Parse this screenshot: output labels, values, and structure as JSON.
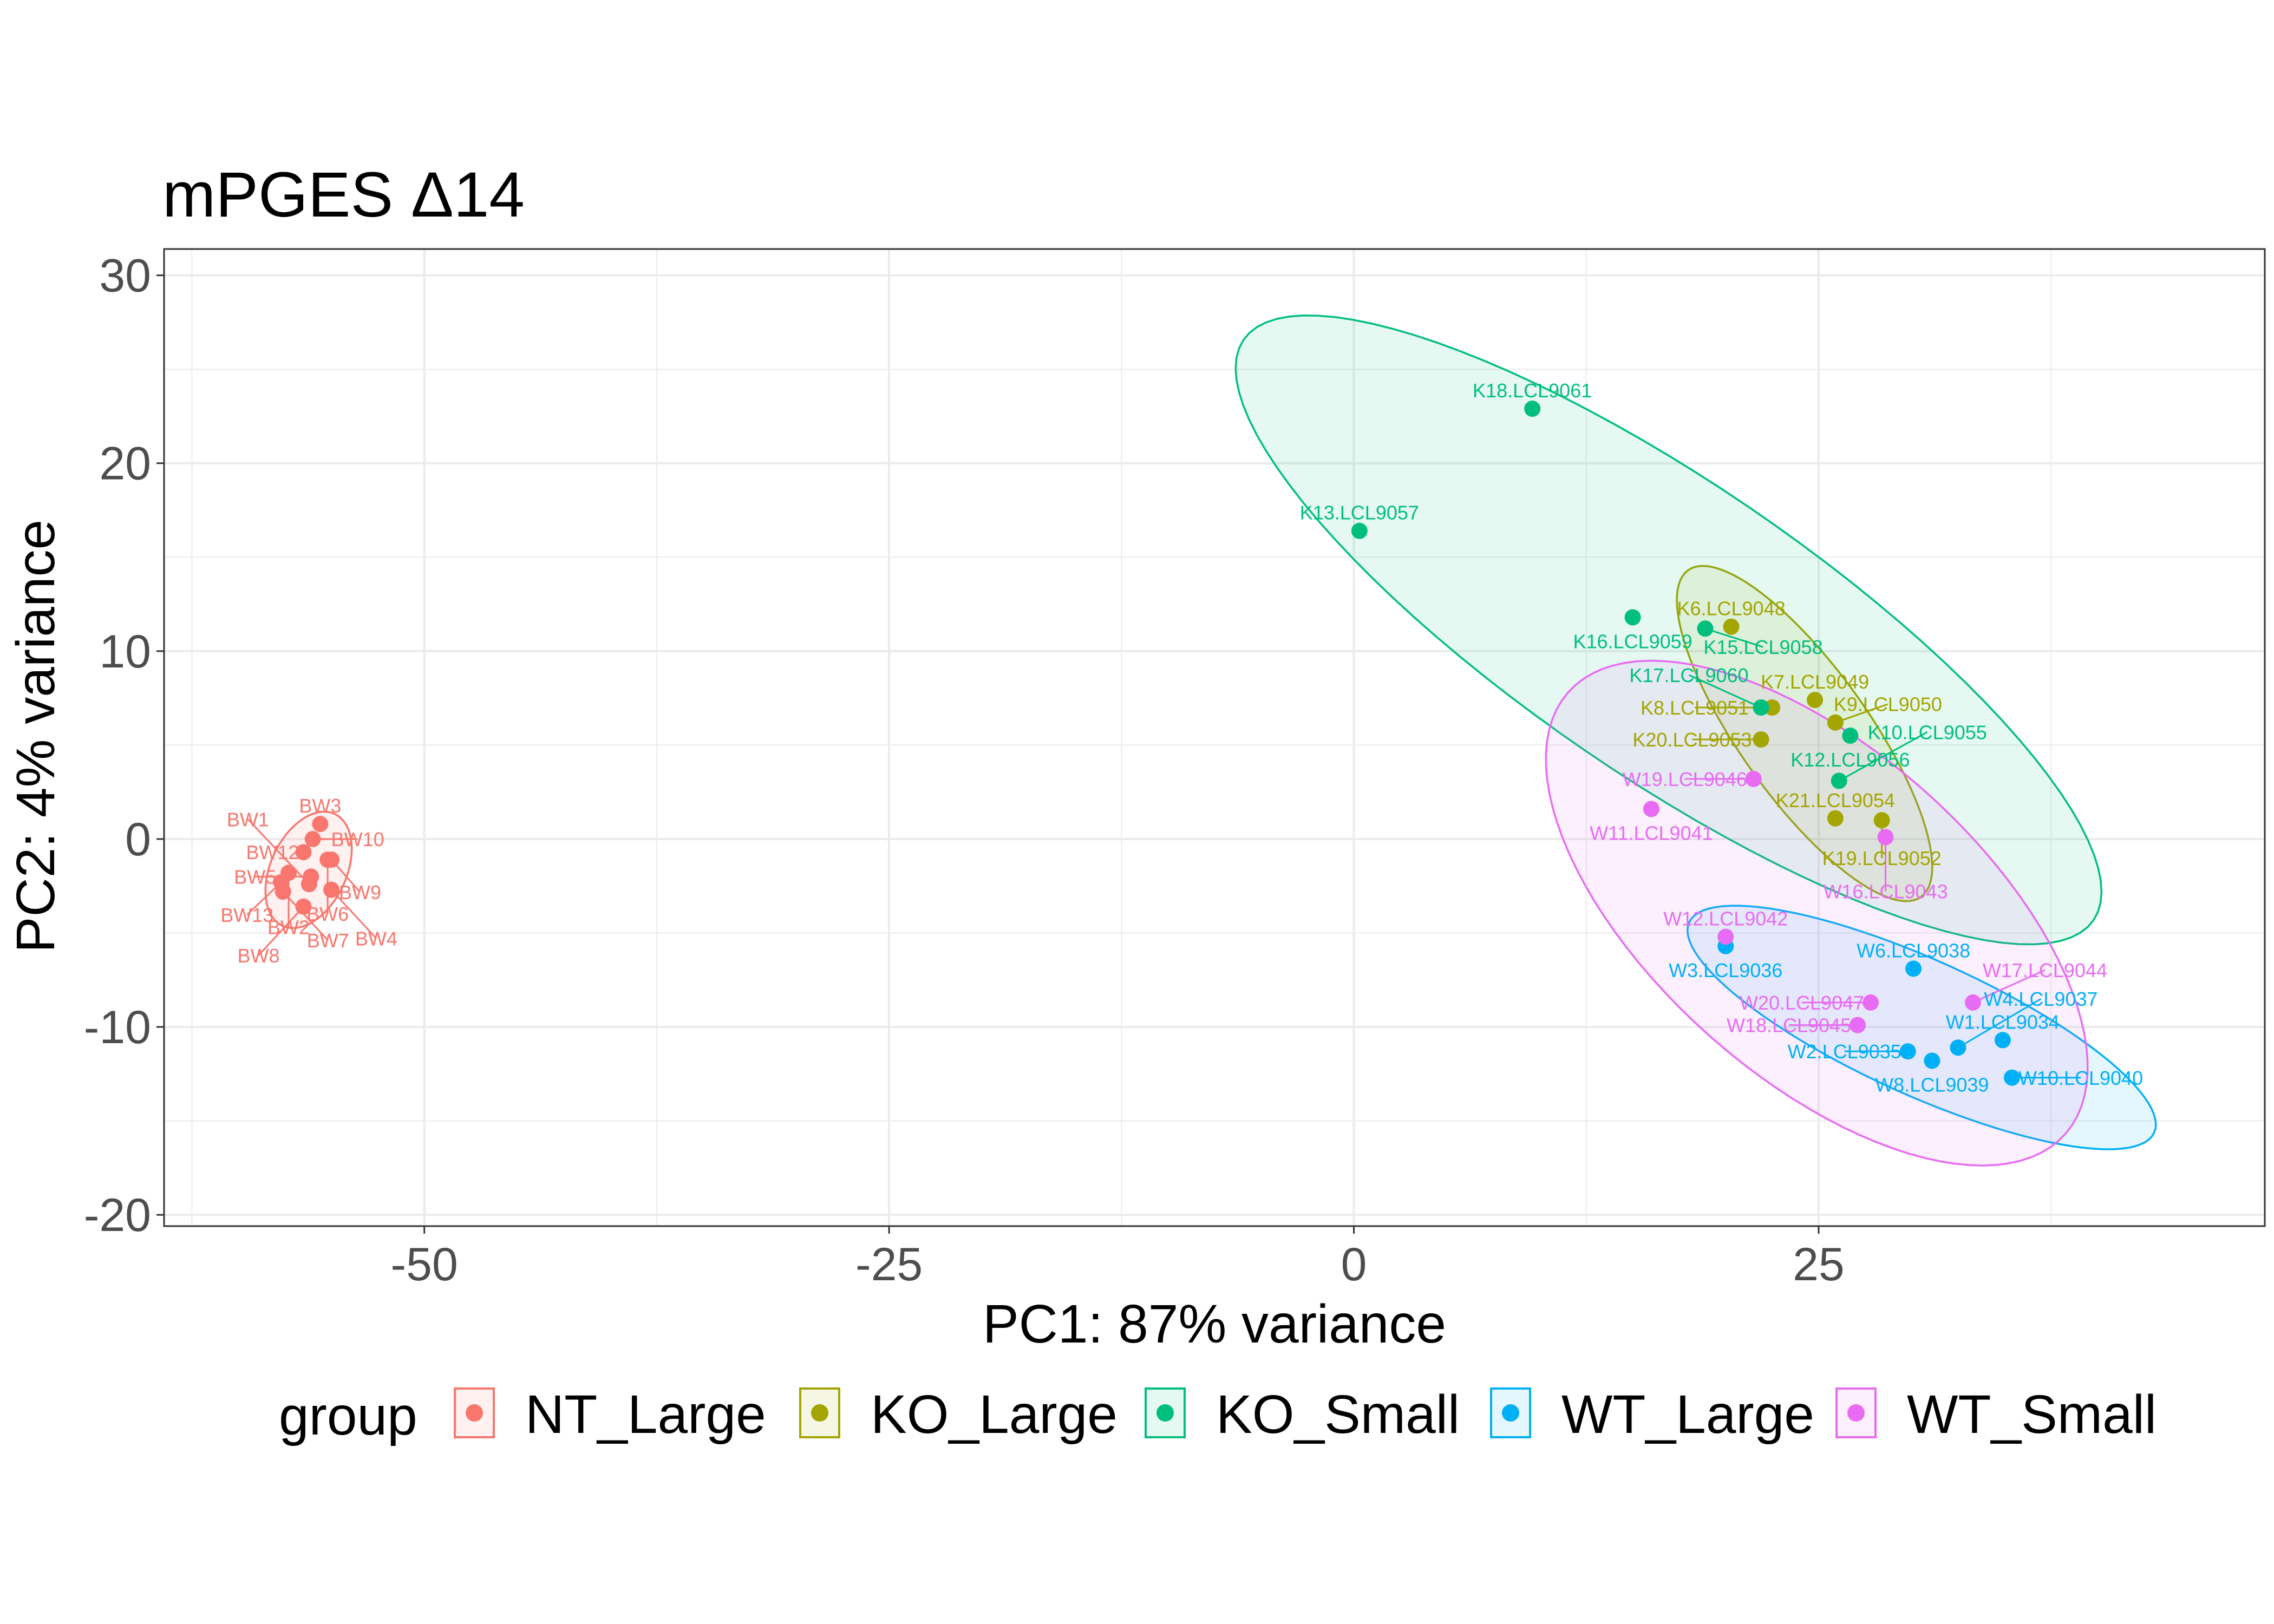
{
  "chart_data": {
    "type": "scatter",
    "title": "mPGES Δ14",
    "xlabel": "PC1: 87% variance",
    "ylabel": "PC2: 4% variance",
    "xlim": [
      -64,
      49
    ],
    "ylim": [
      -20.6,
      31.4
    ],
    "x_ticks": [
      -50,
      -25,
      0,
      25
    ],
    "x_tick_labels": [
      "-50",
      "-25",
      "0",
      "25"
    ],
    "y_ticks": [
      -20,
      -10,
      0,
      10,
      20,
      30
    ],
    "y_tick_labels": [
      "-20",
      "-10",
      "0",
      "10",
      "20",
      "30"
    ],
    "grid": true,
    "legend_title": "group",
    "legend_position": "bottom",
    "series": [
      {
        "name": "NT_Large",
        "color": "#F8766D",
        "points": [
          {
            "label": "BW3",
            "x": -55.6,
            "y": 0.8
          },
          {
            "label": "BW10",
            "x": -56.0,
            "y": 0.0
          },
          {
            "label": "BW12",
            "x": -56.5,
            "y": -0.7
          },
          {
            "label": "BW9",
            "x": -55.0,
            "y": -1.1
          },
          {
            "label": "BW6",
            "x": -55.2,
            "y": -1.1
          },
          {
            "label": "BW2",
            "x": -57.3,
            "y": -1.8
          },
          {
            "label": "BW5",
            "x": -56.1,
            "y": -2.0
          },
          {
            "label": "BW7",
            "x": -57.6,
            "y": -2.8
          },
          {
            "label": "BW1",
            "x": -56.2,
            "y": -2.4
          },
          {
            "label": "BW4",
            "x": -55.0,
            "y": -2.7
          },
          {
            "label": "BW13",
            "x": -57.7,
            "y": -2.3
          },
          {
            "label": "BW8",
            "x": -56.5,
            "y": -3.6
          }
        ]
      },
      {
        "name": "KO_Large",
        "color": "#A3A500",
        "points": [
          {
            "label": "K6.LCL9048",
            "x": 20.3,
            "y": 11.3
          },
          {
            "label": "K7.LCL9049",
            "x": 24.8,
            "y": 7.4
          },
          {
            "label": "K9.LCL9050",
            "x": 25.9,
            "y": 6.2
          },
          {
            "label": "K8.LCL9051",
            "x": 22.5,
            "y": 7.0
          },
          {
            "label": "K20.LCL9053",
            "x": 21.9,
            "y": 5.3
          },
          {
            "label": "K21.LCL9054",
            "x": 25.9,
            "y": 1.1
          },
          {
            "label": "K19.LCL9052",
            "x": 28.4,
            "y": 1.0
          }
        ]
      },
      {
        "name": "KO_Small",
        "color": "#00BF7D",
        "points": [
          {
            "label": "K18.LCL9061",
            "x": 9.6,
            "y": 22.9
          },
          {
            "label": "K13.LCL9057",
            "x": 0.3,
            "y": 16.4
          },
          {
            "label": "K16.LCL9059",
            "x": 15.0,
            "y": 11.8
          },
          {
            "label": "K15.LCL9058",
            "x": 18.9,
            "y": 11.2
          },
          {
            "label": "K17.LCL9060",
            "x": 21.9,
            "y": 7.0
          },
          {
            "label": "K12.LCL9056",
            "x": 26.7,
            "y": 5.5
          },
          {
            "label": "K10.LCL9055",
            "x": 26.1,
            "y": 3.1
          }
        ]
      },
      {
        "name": "WT_Large",
        "color": "#00B0F6",
        "points": [
          {
            "label": "W3.LCL9036",
            "x": 20.0,
            "y": -5.7
          },
          {
            "label": "W6.LCL9038",
            "x": 30.1,
            "y": -6.9
          },
          {
            "label": "W1.LCL9034",
            "x": 34.9,
            "y": -10.7
          },
          {
            "label": "W2.LCL9035",
            "x": 29.8,
            "y": -11.3
          },
          {
            "label": "W8.LCL9039",
            "x": 31.1,
            "y": -11.8
          },
          {
            "label": "W4.LCL9037",
            "x": 32.5,
            "y": -11.1
          },
          {
            "label": "W10.LCL9040",
            "x": 35.4,
            "y": -12.7
          }
        ]
      },
      {
        "name": "WT_Small",
        "color": "#E76BF3",
        "points": [
          {
            "label": "W19.LCL9046",
            "x": 21.5,
            "y": 3.2
          },
          {
            "label": "W11.LCL9041",
            "x": 16.0,
            "y": 1.6
          },
          {
            "label": "W16.LCL9043",
            "x": 28.6,
            "y": 0.1
          },
          {
            "label": "W12.LCL9042",
            "x": 20.0,
            "y": -5.2
          },
          {
            "label": "W20.LCL9047",
            "x": 27.8,
            "y": -8.7
          },
          {
            "label": "W17.LCL9044",
            "x": 33.3,
            "y": -8.7
          },
          {
            "label": "W18.LCL9045",
            "x": 27.1,
            "y": -9.9
          }
        ]
      }
    ]
  }
}
